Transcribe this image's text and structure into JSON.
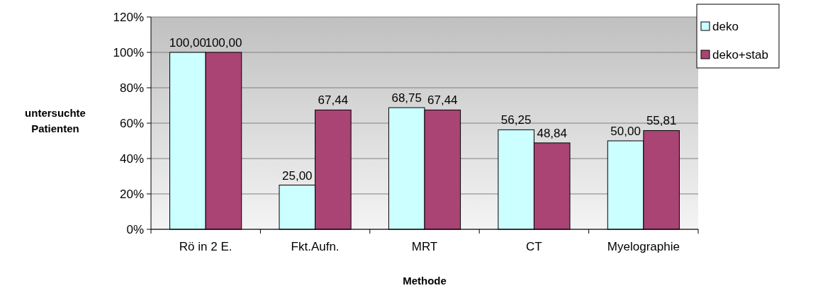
{
  "chart_data": {
    "type": "bar",
    "xlabel": "Methode",
    "ylabel": "untersuchte Patienten",
    "categories": [
      "Rö in 2 E.",
      "Fkt.Aufn.",
      "MRT",
      "CT",
      "Myelographie"
    ],
    "series": [
      {
        "name": "deko",
        "color": "#ccffff",
        "values": [
          100,
          25,
          68.75,
          56.25,
          50
        ],
        "value_labels": [
          "100,00",
          "25,00",
          "68,75",
          "56,25",
          "50,00"
        ]
      },
      {
        "name": "deko+stab",
        "color": "#a94474",
        "values": [
          100,
          67.44,
          67.44,
          48.84,
          55.81
        ],
        "value_labels": [
          "100,00",
          "67,44",
          "67,44",
          "48,84",
          "55,81"
        ]
      }
    ],
    "ylim": [
      0,
      120
    ],
    "yticks": [
      {
        "value": 0,
        "label": "0%"
      },
      {
        "value": 20,
        "label": "20%"
      },
      {
        "value": 40,
        "label": "40%"
      },
      {
        "value": 60,
        "label": "60%"
      },
      {
        "value": 80,
        "label": "80%"
      },
      {
        "value": 100,
        "label": "100%"
      },
      {
        "value": 120,
        "label": "120%"
      }
    ],
    "grid": "y",
    "legend": "top right"
  }
}
